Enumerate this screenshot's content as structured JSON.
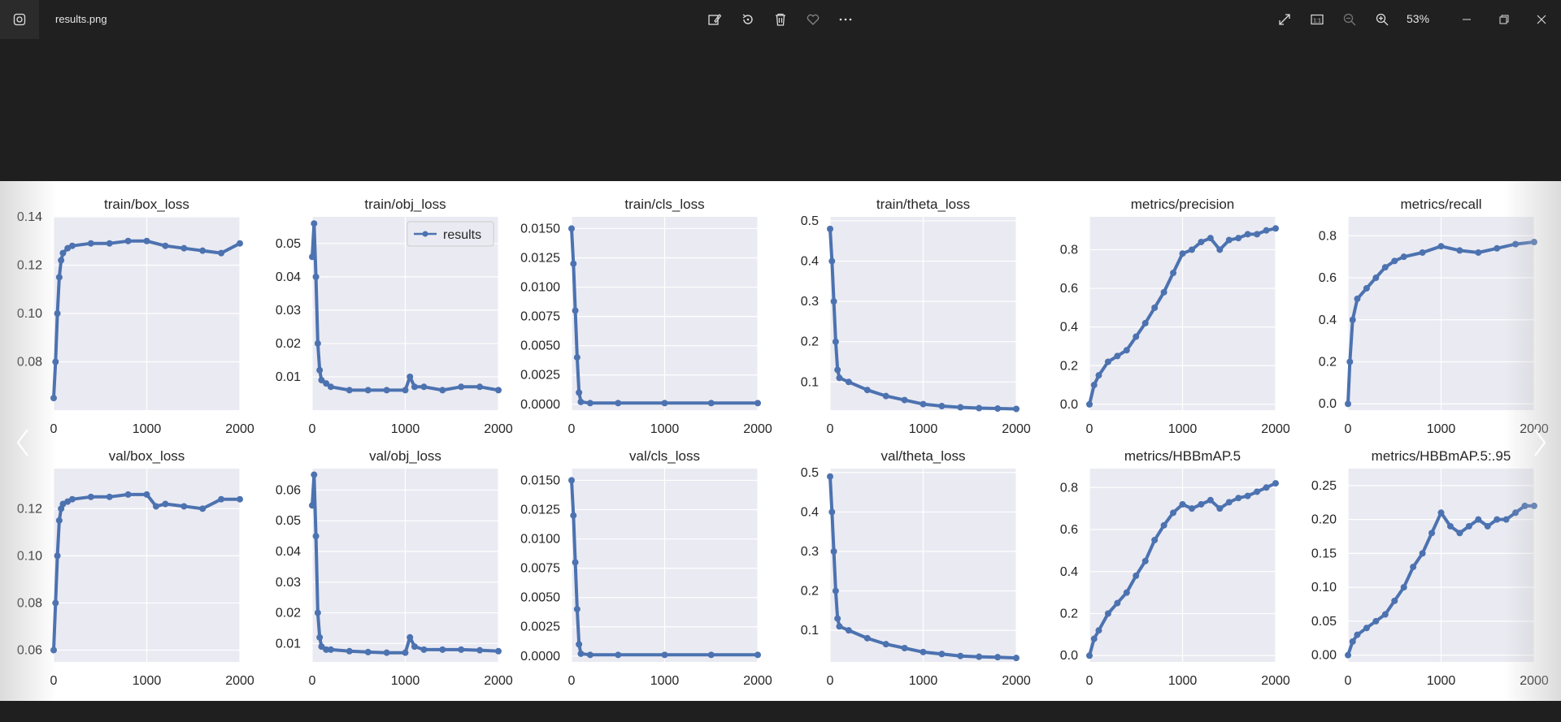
{
  "window": {
    "file_name": "results.png",
    "zoom": "53%"
  },
  "toolbar": {
    "center": [
      {
        "name": "edit-image-icon"
      },
      {
        "name": "rotate-icon"
      },
      {
        "name": "delete-icon"
      },
      {
        "name": "favorite-icon"
      },
      {
        "name": "more-icon"
      }
    ],
    "right": [
      {
        "name": "full-screen-icon"
      },
      {
        "name": "actual-size-icon"
      },
      {
        "name": "zoom-out-icon"
      },
      {
        "name": "zoom-in-icon"
      }
    ],
    "window_controls": [
      {
        "name": "minimize-icon"
      },
      {
        "name": "restore-icon"
      },
      {
        "name": "close-icon"
      }
    ]
  },
  "colors": {
    "series": "#4c72b0",
    "plot_bg": "#eaeaf2",
    "titlebar": "#202020"
  },
  "chart_data": [
    {
      "type": "line",
      "title": "train/box_loss",
      "xlim": [
        0,
        2000
      ],
      "ylim": [
        0.06,
        0.14
      ],
      "yticks": [
        0.08,
        0.1,
        0.12,
        0.14
      ],
      "ytick_labels": [
        "0.08",
        "0.10",
        "0.12",
        "0.14"
      ],
      "x": [
        0,
        20,
        40,
        60,
        80,
        100,
        150,
        200,
        400,
        600,
        800,
        1000,
        1200,
        1400,
        1600,
        1800,
        2000
      ],
      "y": [
        0.065,
        0.08,
        0.1,
        0.115,
        0.122,
        0.125,
        0.127,
        0.128,
        0.129,
        0.129,
        0.13,
        0.13,
        0.128,
        0.127,
        0.126,
        0.125,
        0.129
      ]
    },
    {
      "type": "line",
      "title": "train/obj_loss",
      "legend": "results",
      "xlim": [
        0,
        2000
      ],
      "ylim": [
        0,
        0.058
      ],
      "yticks": [
        0.01,
        0.02,
        0.03,
        0.04,
        0.05
      ],
      "ytick_labels": [
        "0.01",
        "0.02",
        "0.03",
        "0.04",
        "0.05"
      ],
      "x": [
        0,
        20,
        40,
        60,
        80,
        100,
        150,
        200,
        400,
        600,
        800,
        1000,
        1050,
        1100,
        1200,
        1400,
        1600,
        1800,
        2000
      ],
      "y": [
        0.046,
        0.056,
        0.04,
        0.02,
        0.012,
        0.009,
        0.008,
        0.007,
        0.006,
        0.006,
        0.006,
        0.006,
        0.01,
        0.007,
        0.007,
        0.006,
        0.007,
        0.007,
        0.006
      ]
    },
    {
      "type": "line",
      "title": "train/cls_loss",
      "xlim": [
        0,
        2000
      ],
      "ylim": [
        -0.0005,
        0.016
      ],
      "yticks": [
        0,
        0.0025,
        0.005,
        0.0075,
        0.01,
        0.0125,
        0.015
      ],
      "ytick_labels": [
        "0.0000",
        "0.0025",
        "0.0050",
        "0.0075",
        "0.0100",
        "0.0125",
        "0.0150"
      ],
      "x": [
        0,
        20,
        40,
        60,
        80,
        100,
        200,
        500,
        1000,
        1500,
        2000
      ],
      "y": [
        0.015,
        0.012,
        0.008,
        0.004,
        0.001,
        0.0002,
        0.0001,
        0.0001,
        0.0001,
        0.0001,
        0.0001
      ]
    },
    {
      "type": "line",
      "title": "train/theta_loss",
      "xlim": [
        0,
        2000
      ],
      "ylim": [
        0.03,
        0.51
      ],
      "yticks": [
        0.1,
        0.2,
        0.3,
        0.4,
        0.5
      ],
      "ytick_labels": [
        "0.1",
        "0.2",
        "0.3",
        "0.4",
        "0.5"
      ],
      "x": [
        0,
        20,
        40,
        60,
        80,
        100,
        200,
        400,
        600,
        800,
        1000,
        1200,
        1400,
        1600,
        1800,
        2000
      ],
      "y": [
        0.48,
        0.4,
        0.3,
        0.2,
        0.13,
        0.11,
        0.1,
        0.08,
        0.065,
        0.055,
        0.045,
        0.04,
        0.037,
        0.035,
        0.034,
        0.033
      ]
    },
    {
      "type": "line",
      "title": "metrics/precision",
      "xlim": [
        0,
        2000
      ],
      "ylim": [
        -0.03,
        0.97
      ],
      "yticks": [
        0,
        0.2,
        0.4,
        0.6,
        0.8
      ],
      "ytick_labels": [
        "0.0",
        "0.2",
        "0.4",
        "0.6",
        "0.8"
      ],
      "x": [
        0,
        50,
        100,
        200,
        300,
        400,
        500,
        600,
        700,
        800,
        900,
        1000,
        1100,
        1200,
        1300,
        1400,
        1500,
        1600,
        1700,
        1800,
        1900,
        2000
      ],
      "y": [
        0.0,
        0.1,
        0.15,
        0.22,
        0.25,
        0.28,
        0.35,
        0.42,
        0.5,
        0.58,
        0.68,
        0.78,
        0.8,
        0.84,
        0.86,
        0.8,
        0.85,
        0.86,
        0.88,
        0.88,
        0.9,
        0.91
      ]
    },
    {
      "type": "line",
      "title": "metrics/recall",
      "xlim": [
        0,
        2000
      ],
      "ylim": [
        -0.03,
        0.89
      ],
      "yticks": [
        0,
        0.2,
        0.4,
        0.6,
        0.8
      ],
      "ytick_labels": [
        "0.0",
        "0.2",
        "0.4",
        "0.6",
        "0.8"
      ],
      "x": [
        0,
        20,
        50,
        100,
        200,
        300,
        400,
        500,
        600,
        800,
        1000,
        1200,
        1400,
        1600,
        1800,
        2000
      ],
      "y": [
        0.0,
        0.2,
        0.4,
        0.5,
        0.55,
        0.6,
        0.65,
        0.68,
        0.7,
        0.72,
        0.75,
        0.73,
        0.72,
        0.74,
        0.76,
        0.77
      ]
    },
    {
      "type": "line",
      "title": "val/box_loss",
      "xlim": [
        0,
        2000
      ],
      "ylim": [
        0.055,
        0.137
      ],
      "yticks": [
        0.06,
        0.08,
        0.1,
        0.12
      ],
      "ytick_labels": [
        "0.06",
        "0.08",
        "0.10",
        "0.12"
      ],
      "x": [
        0,
        20,
        40,
        60,
        80,
        100,
        150,
        200,
        400,
        600,
        800,
        1000,
        1100,
        1200,
        1400,
        1600,
        1800,
        2000
      ],
      "y": [
        0.06,
        0.08,
        0.1,
        0.115,
        0.12,
        0.122,
        0.123,
        0.124,
        0.125,
        0.125,
        0.126,
        0.126,
        0.121,
        0.122,
        0.121,
        0.12,
        0.124,
        0.124
      ]
    },
    {
      "type": "line",
      "title": "val/obj_loss",
      "xlim": [
        0,
        2000
      ],
      "ylim": [
        0.004,
        0.067
      ],
      "yticks": [
        0.01,
        0.02,
        0.03,
        0.04,
        0.05,
        0.06
      ],
      "ytick_labels": [
        "0.01",
        "0.02",
        "0.03",
        "0.04",
        "0.05",
        "0.06"
      ],
      "x": [
        0,
        20,
        40,
        60,
        80,
        100,
        150,
        200,
        400,
        600,
        800,
        1000,
        1050,
        1100,
        1200,
        1400,
        1600,
        1800,
        2000
      ],
      "y": [
        0.055,
        0.065,
        0.045,
        0.02,
        0.012,
        0.009,
        0.008,
        0.008,
        0.0075,
        0.0072,
        0.007,
        0.007,
        0.012,
        0.009,
        0.008,
        0.008,
        0.008,
        0.0078,
        0.0075
      ]
    },
    {
      "type": "line",
      "title": "val/cls_loss",
      "xlim": [
        0,
        2000
      ],
      "ylim": [
        -0.0005,
        0.016
      ],
      "yticks": [
        0,
        0.0025,
        0.005,
        0.0075,
        0.01,
        0.0125,
        0.015
      ],
      "ytick_labels": [
        "0.0000",
        "0.0025",
        "0.0050",
        "0.0075",
        "0.0100",
        "0.0125",
        "0.0150"
      ],
      "x": [
        0,
        20,
        40,
        60,
        80,
        100,
        200,
        500,
        1000,
        1500,
        2000
      ],
      "y": [
        0.015,
        0.012,
        0.008,
        0.004,
        0.001,
        0.0002,
        0.0001,
        0.0001,
        0.0001,
        0.0001,
        0.0001
      ]
    },
    {
      "type": "line",
      "title": "val/theta_loss",
      "xlim": [
        0,
        2000
      ],
      "ylim": [
        0.02,
        0.51
      ],
      "yticks": [
        0.1,
        0.2,
        0.3,
        0.4,
        0.5
      ],
      "ytick_labels": [
        "0.1",
        "0.2",
        "0.3",
        "0.4",
        "0.5"
      ],
      "x": [
        0,
        20,
        40,
        60,
        80,
        100,
        200,
        400,
        600,
        800,
        1000,
        1200,
        1400,
        1600,
        1800,
        2000
      ],
      "y": [
        0.49,
        0.4,
        0.3,
        0.2,
        0.13,
        0.11,
        0.1,
        0.08,
        0.065,
        0.055,
        0.045,
        0.04,
        0.035,
        0.033,
        0.032,
        0.03
      ]
    },
    {
      "type": "line",
      "title": "metrics/HBBmAP.5",
      "xlim": [
        0,
        2000
      ],
      "ylim": [
        -0.03,
        0.89
      ],
      "yticks": [
        0,
        0.2,
        0.4,
        0.6,
        0.8
      ],
      "ytick_labels": [
        "0.0",
        "0.2",
        "0.4",
        "0.6",
        "0.8"
      ],
      "x": [
        0,
        50,
        100,
        200,
        300,
        400,
        500,
        600,
        700,
        800,
        900,
        1000,
        1100,
        1200,
        1300,
        1400,
        1500,
        1600,
        1700,
        1800,
        1900,
        2000
      ],
      "y": [
        0.0,
        0.08,
        0.12,
        0.2,
        0.25,
        0.3,
        0.38,
        0.45,
        0.55,
        0.62,
        0.68,
        0.72,
        0.7,
        0.72,
        0.74,
        0.7,
        0.73,
        0.75,
        0.76,
        0.78,
        0.8,
        0.82
      ]
    },
    {
      "type": "line",
      "title": "metrics/HBBmAP.5:.95",
      "xlim": [
        0,
        2000
      ],
      "ylim": [
        -0.01,
        0.275
      ],
      "yticks": [
        0,
        0.05,
        0.1,
        0.15,
        0.2,
        0.25
      ],
      "ytick_labels": [
        "0.00",
        "0.05",
        "0.10",
        "0.15",
        "0.20",
        "0.25"
      ],
      "x": [
        0,
        50,
        100,
        200,
        300,
        400,
        500,
        600,
        700,
        800,
        900,
        1000,
        1100,
        1200,
        1300,
        1400,
        1500,
        1600,
        1700,
        1800,
        1900,
        2000
      ],
      "y": [
        0.0,
        0.02,
        0.03,
        0.04,
        0.05,
        0.06,
        0.08,
        0.1,
        0.13,
        0.15,
        0.18,
        0.21,
        0.19,
        0.18,
        0.19,
        0.2,
        0.19,
        0.2,
        0.2,
        0.21,
        0.22,
        0.22
      ]
    }
  ],
  "x_ticks": [
    0,
    1000,
    2000
  ],
  "x_tick_labels": [
    "0",
    "1000",
    "2000"
  ]
}
